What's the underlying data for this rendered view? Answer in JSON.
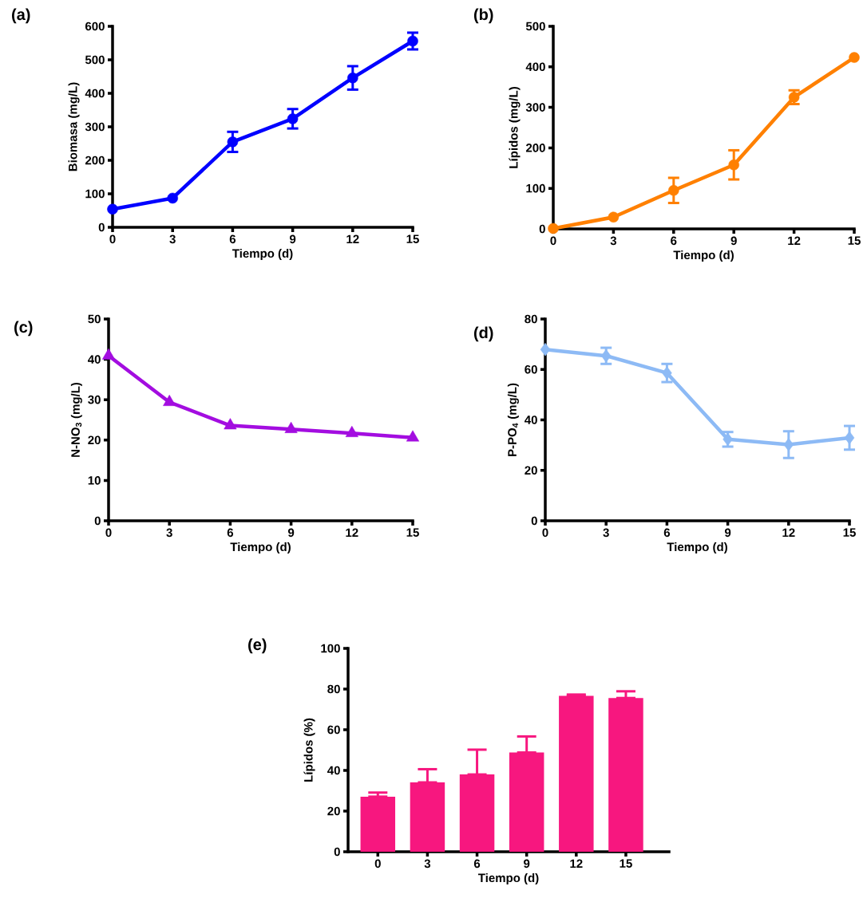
{
  "chart_data": [
    {
      "type": "line",
      "title": "(a)",
      "xlabel": "Tiempo (d)",
      "ylabel": "Biomasa (mg/L)",
      "x": [
        0,
        3,
        6,
        9,
        12,
        15
      ],
      "values": [
        54,
        87,
        255,
        324,
        446,
        556
      ],
      "errors": [
        null,
        null,
        30,
        29,
        35,
        25
      ],
      "color": "#0000ff",
      "marker": "circle",
      "xlim": [
        0,
        15
      ],
      "xticks": [
        0,
        3,
        6,
        9,
        12,
        15
      ],
      "ylim": [
        0,
        600
      ],
      "yticks": [
        0,
        100,
        200,
        300,
        400,
        500,
        600
      ]
    },
    {
      "type": "line",
      "title": "(b)",
      "xlabel": "Tiempo (d)",
      "ylabel": "Lípidos (mg/L)",
      "x": [
        0,
        3,
        6,
        9,
        12,
        15
      ],
      "values": [
        1,
        29,
        95,
        158,
        325,
        423
      ],
      "errors": [
        null,
        null,
        31,
        36,
        17,
        null
      ],
      "color": "#ff8000",
      "marker": "circle",
      "xlim": [
        0,
        15
      ],
      "xticks": [
        0,
        3,
        6,
        9,
        12,
        15
      ],
      "ylim": [
        0,
        500
      ],
      "yticks": [
        0,
        100,
        200,
        300,
        400,
        500
      ]
    },
    {
      "type": "line",
      "title": "(c)",
      "xlabel": "Tiempo (d)",
      "ylabel": "N-NO$_{3}$ (mg/L)",
      "x": [
        0,
        3,
        6,
        9,
        12,
        15
      ],
      "values": [
        40.9,
        29.4,
        23.6,
        22.7,
        21.7,
        20.6
      ],
      "color": "#a30de0",
      "marker": "triangle",
      "xlim": [
        0,
        15
      ],
      "xticks": [
        0,
        3,
        6,
        9,
        12,
        15
      ],
      "ylim": [
        0,
        50
      ],
      "yticks": [
        0,
        10,
        20,
        30,
        40,
        50
      ]
    },
    {
      "type": "line",
      "title": "(d)",
      "xlabel": "Tiempo (d)",
      "ylabel": "P-PO$_{4}$ (mg/L)",
      "x": [
        0,
        3,
        6,
        9,
        12,
        15
      ],
      "values": [
        67.9,
        65.4,
        58.6,
        32.3,
        30.2,
        32.9
      ],
      "errors": [
        null,
        3.2,
        3.6,
        2.9,
        5.3,
        4.7
      ],
      "color": "#8dbaf5",
      "marker": "diamond",
      "xlim": [
        0,
        15
      ],
      "xticks": [
        0,
        3,
        6,
        9,
        12,
        15
      ],
      "ylim": [
        0,
        80
      ],
      "yticks": [
        0,
        20,
        40,
        60,
        80
      ]
    },
    {
      "type": "bar",
      "title": "(e)",
      "xlabel": "Tiempo (d)",
      "ylabel": "Lípidos (%)",
      "categories": [
        "0",
        "3",
        "6",
        "9",
        "12",
        "15"
      ],
      "values": [
        27.1,
        34.1,
        38.0,
        48.8,
        76.7,
        75.6
      ],
      "errors": [
        [
          27.1,
          29.1
        ],
        [
          34.1,
          40.6
        ],
        [
          38.0,
          50.2
        ],
        [
          48.8,
          56.7
        ],
        [
          76.7,
          77.3
        ],
        [
          75.6,
          78.9
        ]
      ],
      "color": "#f7177f",
      "ylim": [
        0,
        100
      ],
      "yticks": [
        0,
        20,
        40,
        60,
        80,
        100
      ]
    }
  ]
}
